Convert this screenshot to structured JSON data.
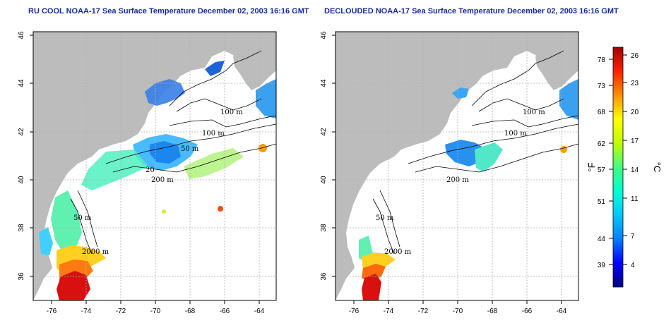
{
  "titles": {
    "left": "RU COOL NOAA-17 Sea Surface Temperature December 02, 2003 16:16 GMT",
    "right": "DECLOUDED NOAA-17 Sea Surface Temperature December 02, 2003 16:16 GMT"
  },
  "map": {
    "lon_ticks": [
      "-76",
      "-74",
      "-72",
      "-70",
      "-68",
      "-66",
      "-64"
    ],
    "lat_ticks": [
      "46",
      "44",
      "42",
      "40",
      "38",
      "36"
    ],
    "contour_labels_left": [
      "100 m",
      "100 m",
      "50 m",
      "200 m",
      "50 m",
      "2000 m",
      "20"
    ],
    "contour_labels_right": [
      "100 m",
      "100 m",
      "200 m",
      "50 m",
      "2000 m"
    ]
  },
  "colorbar": {
    "fahrenheit_ticks": [
      "78",
      "73",
      "68",
      "62",
      "57",
      "51",
      "44",
      "39"
    ],
    "celsius_ticks": [
      "26",
      "23",
      "20",
      "17",
      "14",
      "11",
      "7",
      "4"
    ],
    "fahrenheit_unit": "°F",
    "celsius_unit": "°C",
    "colors": [
      "#000080",
      "#0000ff",
      "#0080ff",
      "#00c8ff",
      "#00ffd0",
      "#40ff80",
      "#c0ff00",
      "#ffff00",
      "#ff9000",
      "#ff2000",
      "#a00000"
    ]
  },
  "colors": {
    "land": "#bcbcbc",
    "ocean": "#ffffff",
    "grid": "#b0b0b0",
    "title": "#1a2a9a"
  }
}
